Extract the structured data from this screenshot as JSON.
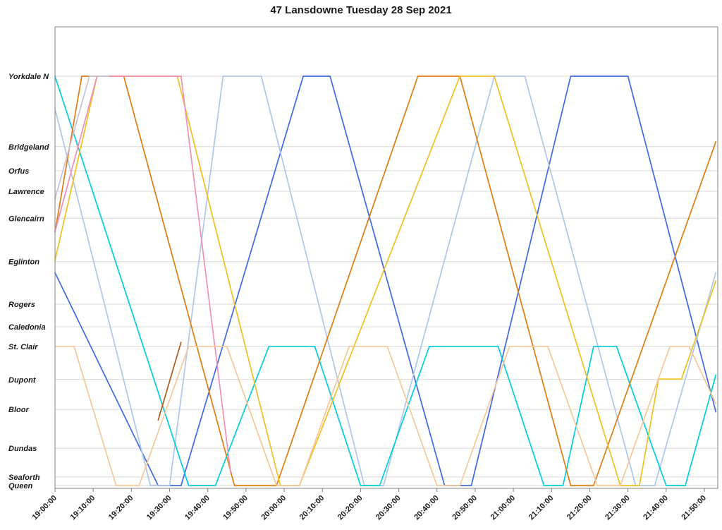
{
  "chart_data": {
    "type": "line",
    "title": "47 Lansdowne Tuesday 28 Sep 2021",
    "legend": "none",
    "grid": true,
    "x_axis": {
      "start_min": 0,
      "end_min": 173,
      "tick_interval_min": 10,
      "tick_labels": [
        "19:00:00",
        "19:10:00",
        "19:20:00",
        "19:30:00",
        "19:40:00",
        "19:50:00",
        "20:00:00",
        "20:10:00",
        "20:20:00",
        "20:30:00",
        "20:40:00",
        "20:50:00",
        "21:00:00",
        "21:10:00",
        "21:20:00",
        "21:30:00",
        "21:40:00",
        "21:50:00"
      ]
    },
    "y_axis": {
      "description": "stops along route, pos = normalized distance from Queen (0) to Yorkdale N (1)",
      "stops": [
        {
          "label": "Yorkdale N",
          "pos": 1.0
        },
        {
          "label": "Bridgeland",
          "pos": 0.828
        },
        {
          "label": "Orfus",
          "pos": 0.769
        },
        {
          "label": "Lawrence",
          "pos": 0.719
        },
        {
          "label": "Glencairn",
          "pos": 0.653
        },
        {
          "label": "Eglinton",
          "pos": 0.547
        },
        {
          "label": "Rogers",
          "pos": 0.443
        },
        {
          "label": "Caledonia",
          "pos": 0.388
        },
        {
          "label": "St. Clair",
          "pos": 0.34
        },
        {
          "label": "Dupont",
          "pos": 0.259
        },
        {
          "label": "Bloor",
          "pos": 0.186
        },
        {
          "label": "Dundas",
          "pos": 0.091
        },
        {
          "label": "Seaforth",
          "pos": 0.021
        },
        {
          "label": "Queen",
          "pos": 0.0
        }
      ]
    },
    "series": [
      {
        "name": "royal-blue",
        "color": "#4169E1",
        "points": [
          [
            0,
            0.52
          ],
          [
            27,
            0
          ],
          [
            33,
            0
          ],
          [
            65,
            1
          ],
          [
            72,
            1
          ],
          [
            102,
            0
          ],
          [
            109,
            0
          ],
          [
            135,
            1
          ],
          [
            150,
            1
          ],
          [
            173,
            0.18
          ]
        ]
      },
      {
        "name": "pale-blue",
        "color": "#AEC7E8",
        "points": [
          [
            0,
            0.92
          ],
          [
            25,
            0
          ],
          [
            30,
            0
          ],
          [
            44,
            1
          ],
          [
            54,
            1
          ],
          [
            81,
            0
          ],
          [
            86,
            0
          ],
          [
            115,
            1
          ],
          [
            123,
            1
          ],
          [
            152,
            0
          ],
          [
            157,
            0
          ],
          [
            173,
            0.52
          ]
        ]
      },
      {
        "name": "cyan",
        "color": "#00CEDD",
        "points": [
          [
            0,
            1
          ],
          [
            35,
            0
          ],
          [
            42,
            0
          ],
          [
            56,
            0.34
          ],
          [
            68,
            0.34
          ],
          [
            80,
            0
          ],
          [
            85,
            0
          ],
          [
            98,
            0.34
          ],
          [
            116,
            0.34
          ],
          [
            128,
            0
          ],
          [
            133,
            0
          ],
          [
            141,
            0.34
          ],
          [
            147,
            0.34
          ],
          [
            160,
            0
          ],
          [
            165,
            0
          ],
          [
            173,
            0.27
          ]
        ]
      },
      {
        "name": "orange",
        "color": "#E07C12",
        "points": [
          [
            0,
            0.62
          ],
          [
            7,
            1
          ],
          [
            18,
            1
          ],
          [
            47,
            0
          ],
          [
            58,
            0
          ],
          [
            95,
            1
          ],
          [
            106,
            1
          ],
          [
            135,
            0
          ],
          [
            141,
            0
          ],
          [
            173,
            0.84
          ]
        ]
      },
      {
        "name": "gold",
        "color": "#EFC020",
        "points": [
          [
            0,
            0.55
          ],
          [
            11,
            1
          ],
          [
            32,
            1
          ],
          [
            59,
            0
          ],
          [
            64,
            0
          ],
          [
            106,
            1
          ],
          [
            115,
            1
          ],
          [
            148,
            0
          ],
          [
            153,
            0
          ],
          [
            158,
            0.26
          ],
          [
            164,
            0.26
          ],
          [
            173,
            0.5
          ]
        ]
      },
      {
        "name": "pink",
        "color": "#F08FB8",
        "points": [
          [
            0,
            0.62
          ],
          [
            11,
            1
          ],
          [
            33,
            1
          ],
          [
            46,
            0.03
          ]
        ]
      },
      {
        "name": "peach",
        "color": "#F5C89A",
        "points": [
          [
            0,
            0.34
          ],
          [
            5,
            0.34
          ],
          [
            16,
            0
          ],
          [
            22,
            0
          ],
          [
            35,
            0.34
          ],
          [
            45,
            0.34
          ],
          [
            58,
            0
          ],
          [
            64,
            0
          ],
          [
            77,
            0.34
          ],
          [
            87,
            0.34
          ],
          [
            100,
            0
          ],
          [
            106,
            0
          ],
          [
            119,
            0.34
          ],
          [
            129,
            0.34
          ],
          [
            142,
            0
          ],
          [
            148,
            0
          ],
          [
            161,
            0.34
          ],
          [
            166,
            0.34
          ],
          [
            173,
            0.2
          ]
        ]
      },
      {
        "name": "brown",
        "color": "#B05A1E",
        "points": [
          [
            27,
            0.16
          ],
          [
            33,
            0.35
          ]
        ]
      },
      {
        "name": "lavender",
        "color": "#C9C2D6",
        "points": [
          [
            0,
            0.7
          ],
          [
            9,
            1
          ],
          [
            14,
            1
          ]
        ]
      }
    ],
    "colors": {
      "gridline": "#D8D8D8",
      "plot_border": "#808080",
      "axis_text": "#1a1a1a"
    }
  }
}
